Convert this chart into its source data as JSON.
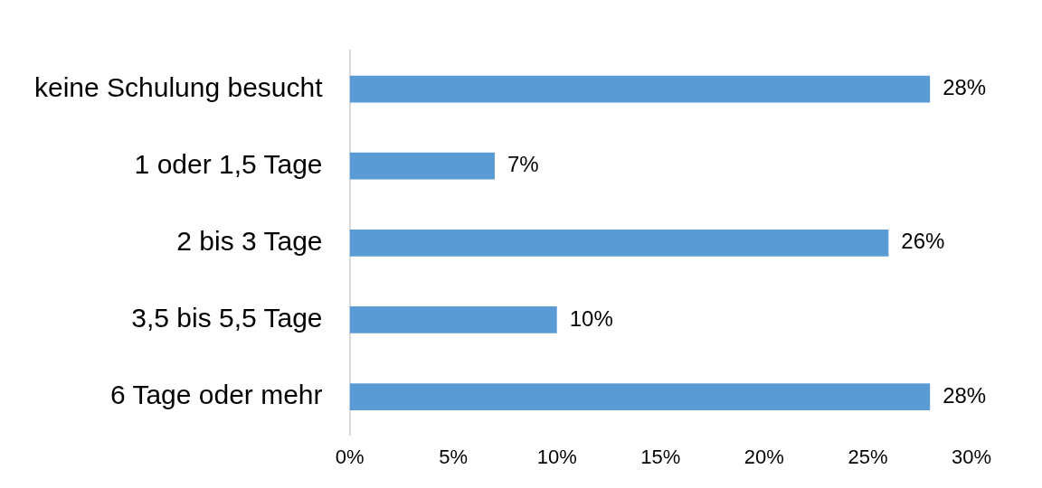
{
  "chart_data": {
    "type": "bar",
    "orientation": "horizontal",
    "categories": [
      "keine Schulung besucht",
      "1 oder 1,5 Tage",
      "2 bis 3 Tage",
      "3,5 bis 5,5 Tage",
      "6 Tage oder mehr"
    ],
    "values": [
      28,
      7,
      26,
      10,
      28
    ],
    "value_labels": [
      "28%",
      "7%",
      "26%",
      "10%",
      "28%"
    ],
    "color": "#5b9bd5",
    "xlim": [
      0,
      30
    ],
    "xticks": [
      {
        "value": 0,
        "label": "0%"
      },
      {
        "value": 5,
        "label": "5%"
      },
      {
        "value": 10,
        "label": "10%"
      },
      {
        "value": 15,
        "label": "15%"
      },
      {
        "value": 20,
        "label": "20%"
      },
      {
        "value": 25,
        "label": "25%"
      },
      {
        "value": 30,
        "label": "30%"
      }
    ],
    "grid": false,
    "legend": false
  }
}
